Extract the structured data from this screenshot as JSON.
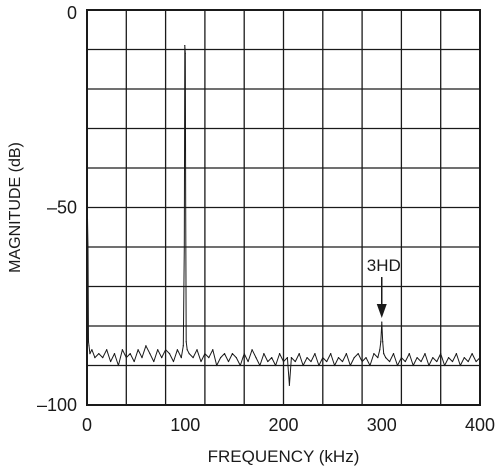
{
  "chart_data": {
    "type": "line",
    "title": "",
    "xlabel": "FREQUENCY (kHz)",
    "ylabel": "MAGNITUDE (dB)",
    "xlim": [
      0,
      400
    ],
    "ylim": [
      -100,
      0
    ],
    "grid": true,
    "x_ticks": [
      0,
      100,
      200,
      300,
      400
    ],
    "x_tick_labels": [
      "0",
      "100",
      "200",
      "300",
      "400"
    ],
    "y_ticks": [
      0,
      -50,
      -100
    ],
    "y_tick_labels": [
      "0",
      "–50",
      "–100"
    ],
    "x_grid_step": 40,
    "y_grid_step": 10,
    "annotation": {
      "text": "3HD",
      "x": 300,
      "y": -79
    },
    "series": [
      {
        "x": [
          0,
          0.5,
          1,
          1.5,
          2,
          3,
          5,
          8,
          12,
          16,
          20,
          24,
          28,
          32,
          36,
          40,
          44,
          48,
          52,
          56,
          60,
          64,
          68,
          72,
          76,
          80,
          84,
          88,
          92,
          96,
          98,
          99,
          99.5,
          100,
          100.5,
          101,
          102,
          104,
          108,
          112,
          116,
          120,
          124,
          128,
          132,
          136,
          140,
          144,
          148,
          152,
          156,
          160,
          164,
          168,
          172,
          176,
          180,
          184,
          188,
          192,
          196,
          200,
          204,
          206,
          208,
          212,
          216,
          220,
          224,
          228,
          232,
          236,
          240,
          244,
          248,
          252,
          256,
          260,
          264,
          268,
          272,
          276,
          280,
          284,
          288,
          292,
          296,
          298,
          299,
          300,
          301,
          302,
          304,
          308,
          312,
          316,
          320,
          324,
          328,
          332,
          336,
          340,
          344,
          348,
          352,
          356,
          360,
          364,
          368,
          372,
          376,
          380,
          384,
          388,
          392,
          396,
          400
        ],
        "y": [
          -55,
          -53,
          -60,
          -84,
          -85,
          -87,
          -86,
          -88,
          -87,
          -88,
          -86,
          -89,
          -87,
          -90,
          -86,
          -88,
          -87,
          -89,
          -86,
          -88,
          -85,
          -87,
          -89,
          -86,
          -88,
          -86,
          -87,
          -89,
          -86,
          -88,
          -85,
          -60,
          -9,
          -11,
          -50,
          -84,
          -86,
          -87,
          -88,
          -86,
          -89,
          -87,
          -88,
          -86,
          -90,
          -88,
          -87,
          -89,
          -87,
          -88,
          -90,
          -87,
          -89,
          -86,
          -88,
          -90,
          -87,
          -89,
          -88,
          -90,
          -87,
          -89,
          -88,
          -95,
          -88,
          -89,
          -87,
          -90,
          -88,
          -89,
          -87,
          -90,
          -88,
          -89,
          -87,
          -90,
          -88,
          -89,
          -87,
          -90,
          -88,
          -87,
          -89,
          -88,
          -90,
          -87,
          -88,
          -86,
          -84,
          -79,
          -84,
          -87,
          -88,
          -89,
          -87,
          -90,
          -88,
          -89,
          -87,
          -90,
          -88,
          -89,
          -87,
          -90,
          -88,
          -89,
          -87,
          -90,
          -88,
          -89,
          -87,
          -90,
          -88,
          -89,
          -87,
          -89,
          -88
        ]
      }
    ]
  }
}
